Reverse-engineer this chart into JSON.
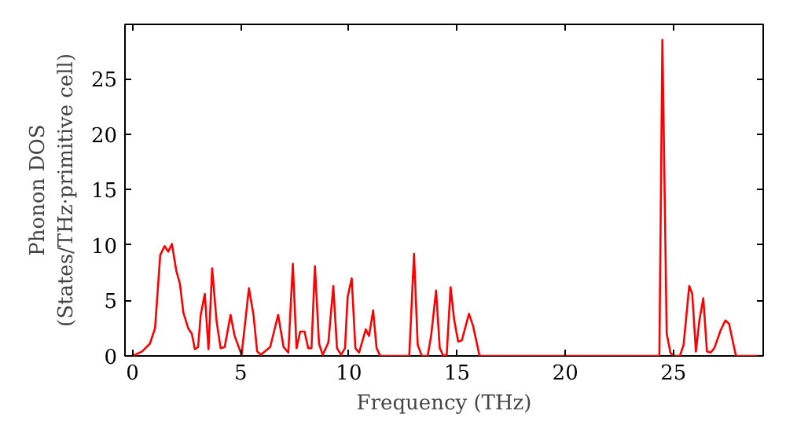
{
  "chart_data": {
    "type": "line",
    "xlabel": "Frequency (THz)",
    "ylabel": "Phonon DOS\n(States/THz·primitive cell)",
    "xlim": [
      -0.35,
      29.15
    ],
    "ylim": [
      0,
      29.9
    ],
    "xticks": [
      0,
      5,
      10,
      15,
      20,
      25
    ],
    "yticks": [
      0,
      5,
      10,
      15,
      20,
      25
    ],
    "grid": false,
    "marker": "none",
    "line_style": "solid",
    "series": [
      {
        "color": "#ff0000",
        "x": [
          0,
          0.44,
          0.8,
          1.04,
          1.28,
          1.48,
          1.65,
          1.82,
          2.02,
          2.19,
          2.35,
          2.57,
          2.74,
          2.88,
          3.03,
          3.15,
          3.34,
          3.51,
          3.68,
          3.88,
          4.07,
          4.26,
          4.53,
          4.72,
          5.04,
          5.38,
          5.59,
          5.76,
          5.93,
          6.36,
          6.73,
          6.98,
          7.2,
          7.41,
          7.58,
          7.75,
          7.95,
          8.12,
          8.27,
          8.43,
          8.62,
          8.79,
          9.05,
          9.28,
          9.45,
          9.64,
          9.82,
          9.94,
          10.13,
          10.3,
          10.47,
          10.78,
          10.93,
          11.12,
          11.28,
          11.45,
          12.79,
          13.01,
          13.18,
          13.37,
          13.64,
          13.8,
          14.03,
          14.2,
          14.37,
          14.52,
          14.7,
          14.87,
          15.05,
          15.22,
          15.55,
          15.74,
          16.04,
          24.35,
          24.49,
          24.69,
          24.86,
          25.0,
          25.3,
          25.47,
          25.73,
          25.87,
          26.04,
          26.2,
          26.38,
          26.55,
          26.72,
          26.89,
          27.18,
          27.4,
          27.57,
          27.89,
          29.1
        ],
        "values": [
          0,
          0.4,
          1.1,
          2.5,
          9.1,
          9.9,
          9.4,
          10.1,
          7.7,
          6.5,
          3.9,
          2.5,
          2.0,
          0.6,
          0.8,
          3.7,
          5.6,
          0.6,
          7.9,
          3.2,
          0.7,
          0.8,
          3.7,
          1.8,
          0.1,
          6.1,
          3.7,
          0.4,
          0.1,
          0.8,
          3.7,
          0.8,
          0.3,
          8.3,
          0.7,
          2.2,
          2.2,
          0.7,
          0.7,
          8.1,
          1.1,
          0.1,
          1.2,
          6.3,
          0.7,
          0.1,
          0.7,
          5.3,
          7.0,
          0.7,
          0.3,
          2.4,
          1.8,
          4.1,
          0.7,
          0,
          0,
          9.2,
          1.0,
          0,
          0,
          1.8,
          5.9,
          0.7,
          0,
          0.1,
          6.2,
          3.2,
          1.3,
          1.4,
          3.8,
          2.7,
          0,
          0,
          28.5,
          2.0,
          0.3,
          0,
          0,
          1.0,
          6.3,
          5.6,
          0.4,
          3.2,
          5.2,
          0.4,
          0.3,
          0.7,
          2.3,
          3.2,
          2.9,
          0,
          0
        ]
      }
    ]
  }
}
